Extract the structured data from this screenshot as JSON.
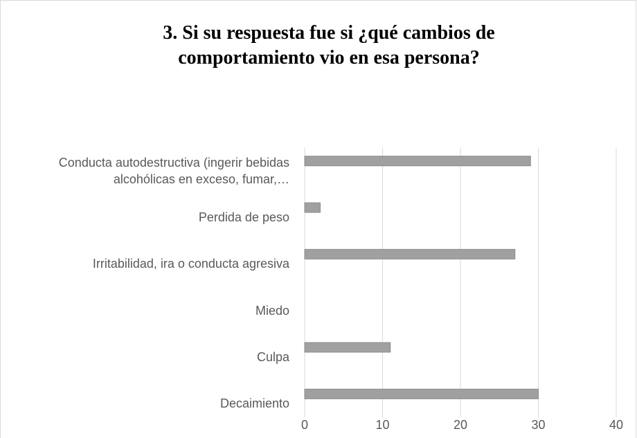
{
  "chart_data": {
    "type": "bar",
    "orientation": "horizontal",
    "title": "3. Si su respuesta fue si ¿qué cambios de comportamiento vio en esa persona?",
    "categories": [
      "Conducta autodestructiva (ingerir bebidas alcohólicas en exceso, fumar,…",
      "Perdida de peso",
      "Irritabilidad, ira o conducta agresiva",
      "Miedo",
      "Culpa",
      "Decaimiento"
    ],
    "values": [
      29,
      2,
      27,
      0,
      11,
      30
    ],
    "color": "#a0a0a0",
    "xlim": [
      0,
      40
    ],
    "xticks": [
      0,
      10,
      20,
      30,
      40
    ],
    "grid": true
  }
}
